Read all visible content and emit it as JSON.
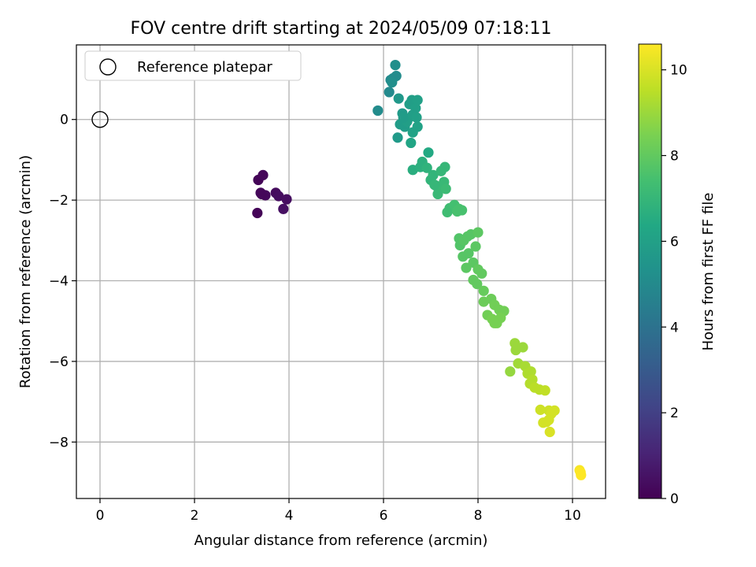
{
  "chart_data": {
    "type": "scatter",
    "title": "FOV centre drift starting at 2024/05/09 07:18:11",
    "xlabel": "Angular distance from reference (arcmin)",
    "ylabel": "Rotation from reference (arcmin)",
    "xlim": [
      -0.5,
      10.7
    ],
    "ylim": [
      -9.4,
      1.85
    ],
    "xticks": [
      0,
      2,
      4,
      6,
      8,
      10
    ],
    "yticks": [
      0,
      -2,
      -4,
      -6,
      -8
    ],
    "grid": true,
    "legend": {
      "position": "top-left",
      "label": "Reference platepar"
    },
    "reference_point": {
      "x": 0,
      "y": 0
    },
    "colorbar": {
      "label": "Hours from first FF file",
      "range": [
        0,
        10.6
      ],
      "ticks": [
        0,
        2,
        4,
        6,
        8,
        10
      ],
      "colormap": "viridis"
    },
    "points": [
      {
        "x": 3.35,
        "y": -1.5,
        "t": 0.1
      },
      {
        "x": 3.45,
        "y": -1.38,
        "t": 0.15
      },
      {
        "x": 3.4,
        "y": -1.82,
        "t": 0.2
      },
      {
        "x": 3.5,
        "y": -1.88,
        "t": 0.25
      },
      {
        "x": 3.72,
        "y": -1.82,
        "t": 0.3
      },
      {
        "x": 3.78,
        "y": -1.9,
        "t": 0.35
      },
      {
        "x": 3.95,
        "y": -1.98,
        "t": 0.4
      },
      {
        "x": 3.33,
        "y": -2.32,
        "t": 0.1
      },
      {
        "x": 3.88,
        "y": -2.22,
        "t": 0.45
      },
      {
        "x": 3.42,
        "y": -1.85,
        "t": 0.2
      },
      {
        "x": 5.88,
        "y": 0.22,
        "t": 5.1
      },
      {
        "x": 6.12,
        "y": 0.68,
        "t": 5.0
      },
      {
        "x": 6.15,
        "y": 0.98,
        "t": 5.0
      },
      {
        "x": 6.2,
        "y": 1.02,
        "t": 5.1
      },
      {
        "x": 6.27,
        "y": 1.08,
        "t": 5.1
      },
      {
        "x": 6.25,
        "y": 1.35,
        "t": 5.2
      },
      {
        "x": 6.18,
        "y": 0.92,
        "t": 5.2
      },
      {
        "x": 6.32,
        "y": 0.52,
        "t": 5.6
      },
      {
        "x": 6.4,
        "y": 0.15,
        "t": 5.7
      },
      {
        "x": 6.35,
        "y": -0.12,
        "t": 5.8
      },
      {
        "x": 6.45,
        "y": -0.18,
        "t": 5.8
      },
      {
        "x": 6.3,
        "y": -0.45,
        "t": 5.7
      },
      {
        "x": 6.55,
        "y": 0.38,
        "t": 5.9
      },
      {
        "x": 6.6,
        "y": 0.48,
        "t": 5.9
      },
      {
        "x": 6.68,
        "y": 0.28,
        "t": 6.0
      },
      {
        "x": 6.52,
        "y": 0.02,
        "t": 6.0
      },
      {
        "x": 6.62,
        "y": -0.32,
        "t": 6.1
      },
      {
        "x": 6.72,
        "y": -0.18,
        "t": 6.1
      },
      {
        "x": 6.58,
        "y": -0.58,
        "t": 6.2
      },
      {
        "x": 6.72,
        "y": 0.48,
        "t": 6.0
      },
      {
        "x": 6.5,
        "y": -0.05,
        "t": 5.9
      },
      {
        "x": 6.42,
        "y": 0.05,
        "t": 5.8
      },
      {
        "x": 6.62,
        "y": 0.12,
        "t": 5.9
      },
      {
        "x": 6.7,
        "y": 0.05,
        "t": 6.0
      },
      {
        "x": 6.95,
        "y": -0.82,
        "t": 6.4
      },
      {
        "x": 6.62,
        "y": -1.25,
        "t": 6.6
      },
      {
        "x": 6.78,
        "y": -1.18,
        "t": 6.7
      },
      {
        "x": 6.82,
        "y": -1.05,
        "t": 6.7
      },
      {
        "x": 6.92,
        "y": -1.2,
        "t": 6.8
      },
      {
        "x": 7.0,
        "y": -1.5,
        "t": 6.9
      },
      {
        "x": 7.05,
        "y": -1.38,
        "t": 6.9
      },
      {
        "x": 7.12,
        "y": -1.65,
        "t": 7.0
      },
      {
        "x": 7.2,
        "y": -1.72,
        "t": 7.1
      },
      {
        "x": 7.15,
        "y": -1.85,
        "t": 7.1
      },
      {
        "x": 7.28,
        "y": -1.55,
        "t": 7.1
      },
      {
        "x": 7.3,
        "y": -1.18,
        "t": 7.0
      },
      {
        "x": 7.22,
        "y": -1.28,
        "t": 7.0
      },
      {
        "x": 7.32,
        "y": -1.72,
        "t": 7.2
      },
      {
        "x": 7.08,
        "y": -1.62,
        "t": 7.0
      },
      {
        "x": 7.35,
        "y": -2.3,
        "t": 7.3
      },
      {
        "x": 7.4,
        "y": -2.2,
        "t": 7.3
      },
      {
        "x": 7.5,
        "y": -2.12,
        "t": 7.4
      },
      {
        "x": 7.6,
        "y": -2.22,
        "t": 7.5
      },
      {
        "x": 7.66,
        "y": -2.25,
        "t": 7.5
      },
      {
        "x": 7.56,
        "y": -2.28,
        "t": 7.5
      },
      {
        "x": 7.6,
        "y": -2.95,
        "t": 7.7
      },
      {
        "x": 7.62,
        "y": -3.12,
        "t": 7.7
      },
      {
        "x": 7.7,
        "y": -3.0,
        "t": 7.8
      },
      {
        "x": 7.78,
        "y": -2.9,
        "t": 7.8
      },
      {
        "x": 7.85,
        "y": -2.85,
        "t": 7.8
      },
      {
        "x": 8.0,
        "y": -2.8,
        "t": 7.9
      },
      {
        "x": 7.68,
        "y": -3.4,
        "t": 7.8
      },
      {
        "x": 7.8,
        "y": -3.32,
        "t": 7.8
      },
      {
        "x": 7.95,
        "y": -3.15,
        "t": 7.9
      },
      {
        "x": 7.75,
        "y": -3.68,
        "t": 7.9
      },
      {
        "x": 7.9,
        "y": -3.55,
        "t": 7.9
      },
      {
        "x": 8.0,
        "y": -3.72,
        "t": 8.0
      },
      {
        "x": 8.08,
        "y": -3.82,
        "t": 8.0
      },
      {
        "x": 7.9,
        "y": -3.98,
        "t": 8.0
      },
      {
        "x": 7.98,
        "y": -4.08,
        "t": 8.0
      },
      {
        "x": 8.12,
        "y": -4.25,
        "t": 8.1
      },
      {
        "x": 8.12,
        "y": -4.52,
        "t": 8.2
      },
      {
        "x": 8.28,
        "y": -4.45,
        "t": 8.2
      },
      {
        "x": 8.35,
        "y": -4.6,
        "t": 8.3
      },
      {
        "x": 8.45,
        "y": -4.72,
        "t": 8.3
      },
      {
        "x": 8.55,
        "y": -4.75,
        "t": 8.3
      },
      {
        "x": 8.2,
        "y": -4.85,
        "t": 8.3
      },
      {
        "x": 8.3,
        "y": -4.95,
        "t": 8.4
      },
      {
        "x": 8.4,
        "y": -5.05,
        "t": 8.4
      },
      {
        "x": 8.48,
        "y": -4.92,
        "t": 8.4
      },
      {
        "x": 8.35,
        "y": -5.05,
        "t": 8.4
      },
      {
        "x": 8.78,
        "y": -5.55,
        "t": 9.0
      },
      {
        "x": 8.8,
        "y": -5.72,
        "t": 9.0
      },
      {
        "x": 8.95,
        "y": -5.65,
        "t": 9.0
      },
      {
        "x": 8.68,
        "y": -6.25,
        "t": 8.9
      },
      {
        "x": 8.85,
        "y": -6.05,
        "t": 9.1
      },
      {
        "x": 9.0,
        "y": -6.12,
        "t": 9.2
      },
      {
        "x": 9.05,
        "y": -6.3,
        "t": 9.3
      },
      {
        "x": 9.12,
        "y": -6.25,
        "t": 9.3
      },
      {
        "x": 9.15,
        "y": -6.45,
        "t": 9.4
      },
      {
        "x": 9.1,
        "y": -6.55,
        "t": 9.4
      },
      {
        "x": 9.2,
        "y": -6.65,
        "t": 9.5
      },
      {
        "x": 9.3,
        "y": -6.7,
        "t": 9.5
      },
      {
        "x": 9.42,
        "y": -6.72,
        "t": 9.6
      },
      {
        "x": 9.32,
        "y": -7.2,
        "t": 9.8
      },
      {
        "x": 9.5,
        "y": -7.22,
        "t": 9.8
      },
      {
        "x": 9.55,
        "y": -7.3,
        "t": 9.9
      },
      {
        "x": 9.62,
        "y": -7.22,
        "t": 9.9
      },
      {
        "x": 9.38,
        "y": -7.52,
        "t": 9.9
      },
      {
        "x": 9.45,
        "y": -7.5,
        "t": 9.9
      },
      {
        "x": 9.52,
        "y": -7.75,
        "t": 10.0
      },
      {
        "x": 9.5,
        "y": -7.45,
        "t": 9.9
      },
      {
        "x": 10.15,
        "y": -8.7,
        "t": 10.5
      },
      {
        "x": 10.18,
        "y": -8.82,
        "t": 10.6
      },
      {
        "x": 10.17,
        "y": -8.75,
        "t": 10.6
      }
    ]
  }
}
